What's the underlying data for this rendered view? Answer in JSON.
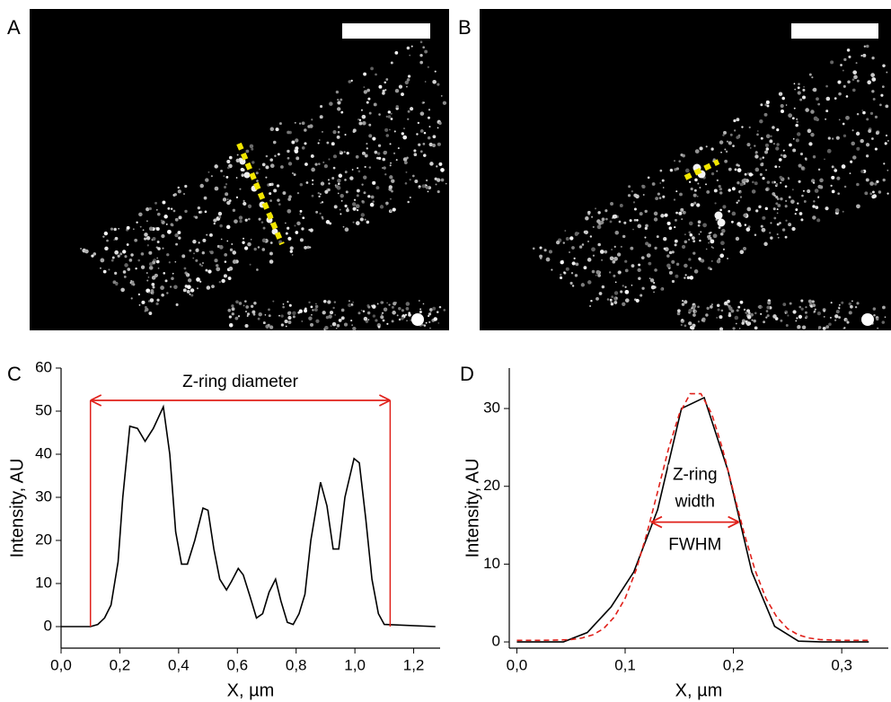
{
  "panel_labels": [
    "A",
    "B",
    "C",
    "D"
  ],
  "chart_data": [
    {
      "type": "line",
      "xlabel": "X, µm",
      "ylabel": "Intensity, AU",
      "xlim": [
        0,
        1.29
      ],
      "ylim": [
        -5,
        60
      ],
      "xticks": [
        {
          "value": 0,
          "label": "0,0"
        },
        {
          "value": 0.2,
          "label": "0,2"
        },
        {
          "value": 0.4,
          "label": "0,4"
        },
        {
          "value": 0.6,
          "label": "0,6"
        },
        {
          "value": 0.8,
          "label": "0,8"
        },
        {
          "value": 1.0,
          "label": "1,0"
        },
        {
          "value": 1.2,
          "label": "1,2"
        }
      ],
      "yticks": [
        0,
        10,
        20,
        30,
        40,
        50,
        60
      ],
      "series": [
        {
          "color": "#000000",
          "line_style": "solid",
          "x": [
            0,
            0.1,
            0.125,
            0.148,
            0.17,
            0.194,
            0.21,
            0.234,
            0.26,
            0.286,
            0.314,
            0.348,
            0.37,
            0.39,
            0.41,
            0.43,
            0.455,
            0.483,
            0.5,
            0.52,
            0.54,
            0.563,
            0.58,
            0.603,
            0.62,
            0.643,
            0.665,
            0.686,
            0.708,
            0.73,
            0.748,
            0.77,
            0.79,
            0.81,
            0.83,
            0.85,
            0.883,
            0.905,
            0.926,
            0.945,
            0.966,
            0.997,
            1.015,
            1.037,
            1.058,
            1.08,
            1.1,
            1.274
          ],
          "values": [
            0,
            0,
            0.5,
            2,
            5,
            15,
            30,
            46.5,
            46,
            43,
            46,
            51,
            40,
            22,
            14.5,
            14.5,
            20,
            27.5,
            27,
            18,
            11,
            8.5,
            10.5,
            13.5,
            12,
            7,
            2,
            3,
            8,
            11,
            6,
            1,
            0.5,
            3,
            7.5,
            20,
            33.5,
            28,
            18,
            18,
            30,
            39,
            38,
            25,
            11,
            3,
            0.5,
            0
          ]
        }
      ],
      "annotation": {
        "text": "Z-ring diameter",
        "x": [
          0.1,
          1.12
        ],
        "y": 52.5,
        "color": "#e0201a"
      }
    },
    {
      "type": "line",
      "xlabel": "X, µm",
      "ylabel": "Intensity, AU",
      "xlim": [
        -0.007,
        0.343
      ],
      "ylim": [
        -0.8,
        35.2
      ],
      "xticks": [
        {
          "value": 0,
          "label": "0,0"
        },
        {
          "value": 0.1,
          "label": "0,1"
        },
        {
          "value": 0.2,
          "label": "0,2"
        },
        {
          "value": 0.3,
          "label": "0,3"
        }
      ],
      "yticks": [
        0,
        10,
        20,
        30
      ],
      "series": [
        {
          "color": "#000000",
          "line_style": "solid",
          "x": [
            0,
            0.043,
            0.065,
            0.087,
            0.108,
            0.13,
            0.152,
            0.173,
            0.195,
            0.217,
            0.238,
            0.26,
            0.282,
            0.325
          ],
          "values": [
            0,
            0,
            1.2,
            4.5,
            9,
            17,
            30,
            31.4,
            22,
            9,
            2,
            0.1,
            0,
            0
          ]
        },
        {
          "color": "#e0201a",
          "line_style": "dashed",
          "x": [
            0,
            0.02,
            0.04,
            0.05,
            0.06,
            0.07,
            0.08,
            0.09,
            0.1,
            0.11,
            0.12,
            0.13,
            0.14,
            0.15,
            0.16,
            0.17,
            0.18,
            0.19,
            0.2,
            0.21,
            0.22,
            0.23,
            0.24,
            0.25,
            0.26,
            0.27,
            0.28,
            0.29,
            0.3,
            0.31,
            0.325
          ],
          "values": [
            0.2,
            0.2,
            0.25,
            0.3,
            0.5,
            0.9,
            1.7,
            3.2,
            5.6,
            9.2,
            13.9,
            19.3,
            24.8,
            29.3,
            31.9,
            31.9,
            29.3,
            24.8,
            19.3,
            13.9,
            9.2,
            5.6,
            3.2,
            1.7,
            0.9,
            0.5,
            0.3,
            0.25,
            0.2,
            0.2,
            0.2
          ]
        }
      ],
      "annotation": {
        "lines": [
          "Z-ring",
          "width"
        ],
        "text": "FWHM",
        "x": [
          0.124,
          0.205
        ],
        "y": 15.4,
        "color": "#e0201a"
      }
    }
  ]
}
